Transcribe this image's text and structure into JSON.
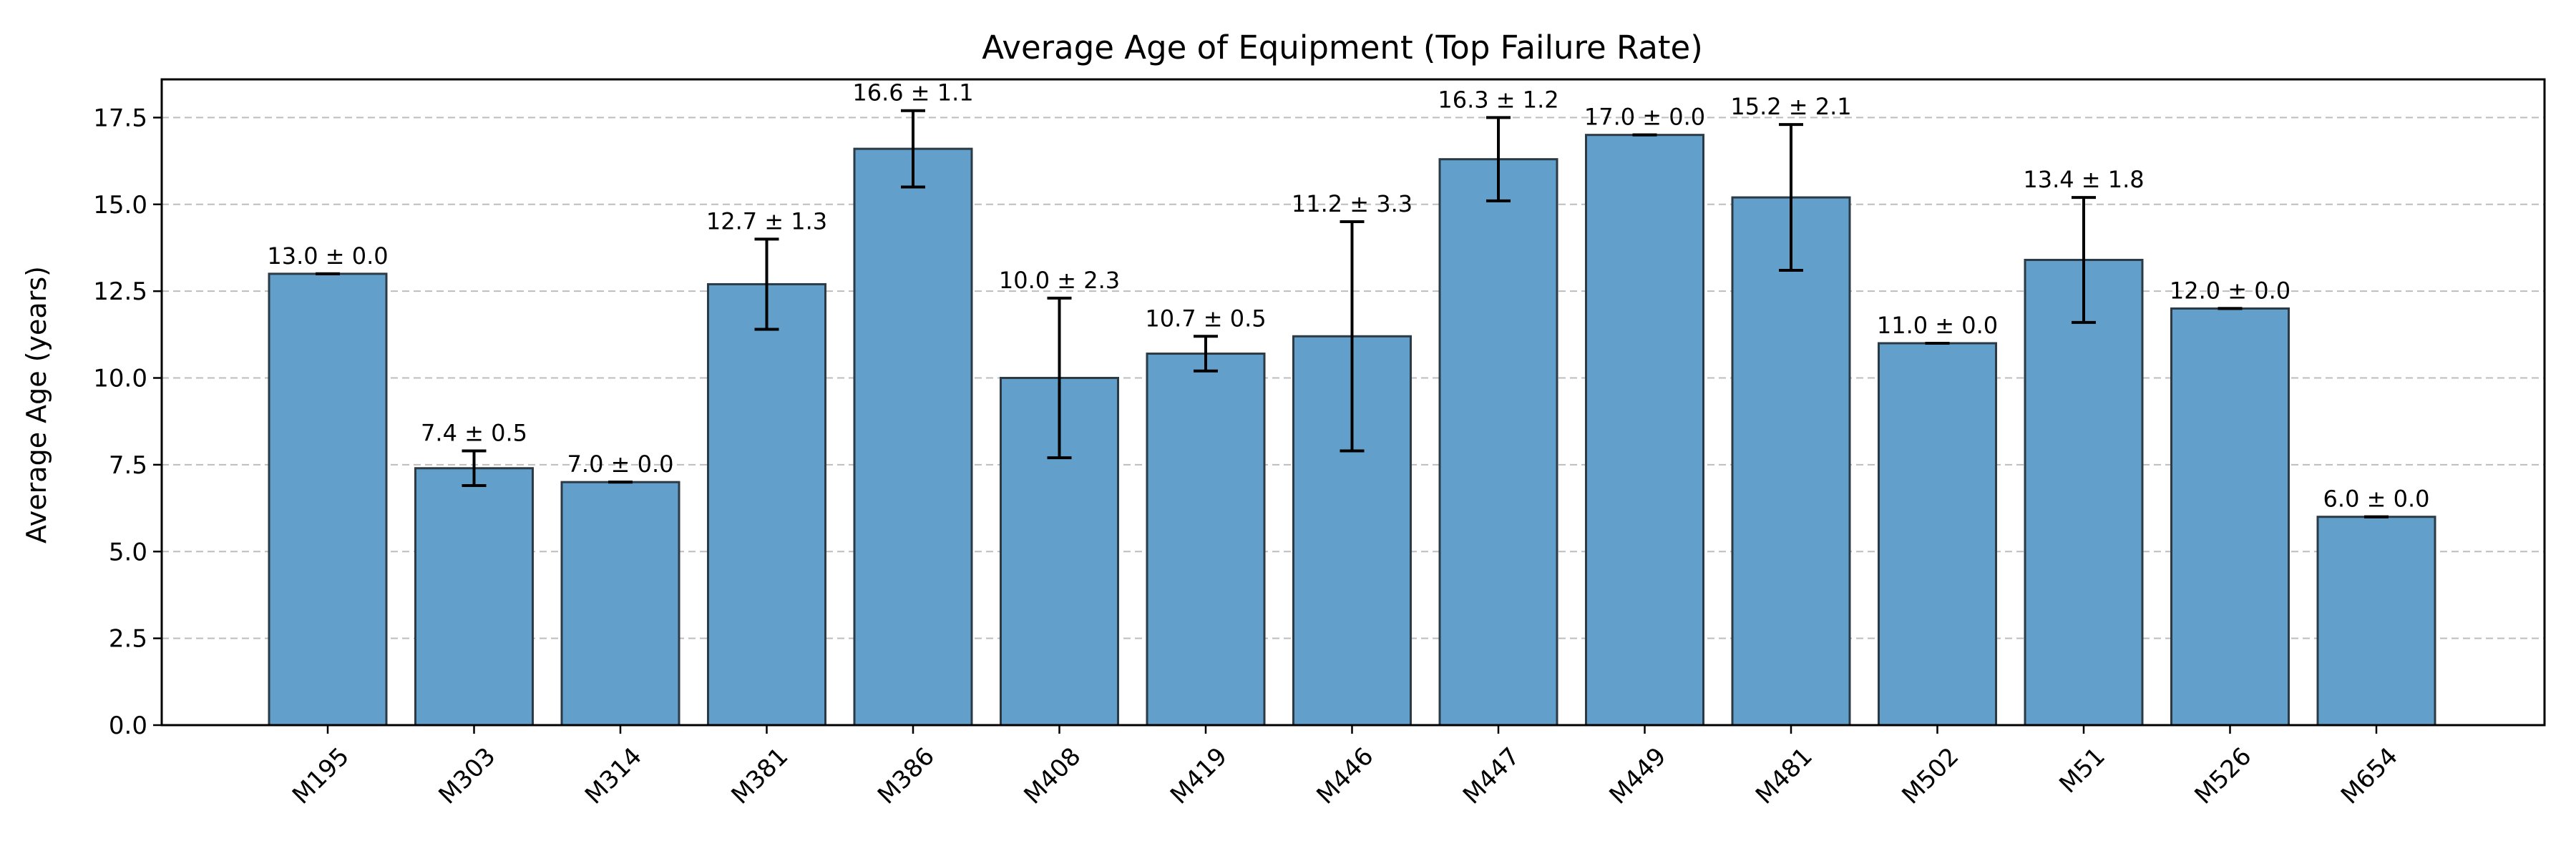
{
  "chart_data": {
    "type": "bar",
    "title": "Average Age of Equipment (Top Failure Rate)",
    "xlabel": "",
    "ylabel": "Average Age (years)",
    "ylim": [
      0,
      18.6
    ],
    "yticks": [
      "0.0",
      "2.5",
      "5.0",
      "7.5",
      "10.0",
      "12.5",
      "15.0",
      "17.5"
    ],
    "grid": "y-dashed",
    "categories": [
      "M195",
      "M303",
      "M314",
      "M381",
      "M386",
      "M408",
      "M419",
      "M446",
      "M447",
      "M449",
      "M481",
      "M502",
      "M51",
      "M526",
      "M654"
    ],
    "values": [
      13.0,
      7.4,
      7.0,
      12.7,
      16.6,
      10.0,
      10.7,
      11.2,
      16.3,
      17.0,
      15.2,
      11.0,
      13.4,
      12.0,
      6.0
    ],
    "errors": [
      0.0,
      0.5,
      0.0,
      1.3,
      1.1,
      2.3,
      0.5,
      3.3,
      1.2,
      0.0,
      2.1,
      0.0,
      1.8,
      0.0,
      0.0
    ],
    "data_labels": [
      "13.0 ± 0.0",
      "7.4 ± 0.5",
      "7.0 ± 0.0",
      "12.7 ± 1.3",
      "16.6 ± 1.1",
      "10.0 ± 2.3",
      "10.7 ± 0.5",
      "11.2 ± 3.3",
      "16.3 ± 1.2",
      "17.0 ± 0.0",
      "15.2 ± 2.1",
      "11.0 ± 0.0",
      "13.4 ± 1.8",
      "12.0 ± 0.0",
      "6.0 ± 0.0"
    ],
    "colors": {
      "bar_fill": "#62a0cb",
      "bar_edge": "#2b3a44",
      "error_bar": "#000000",
      "grid": "#bdbdbd"
    }
  }
}
